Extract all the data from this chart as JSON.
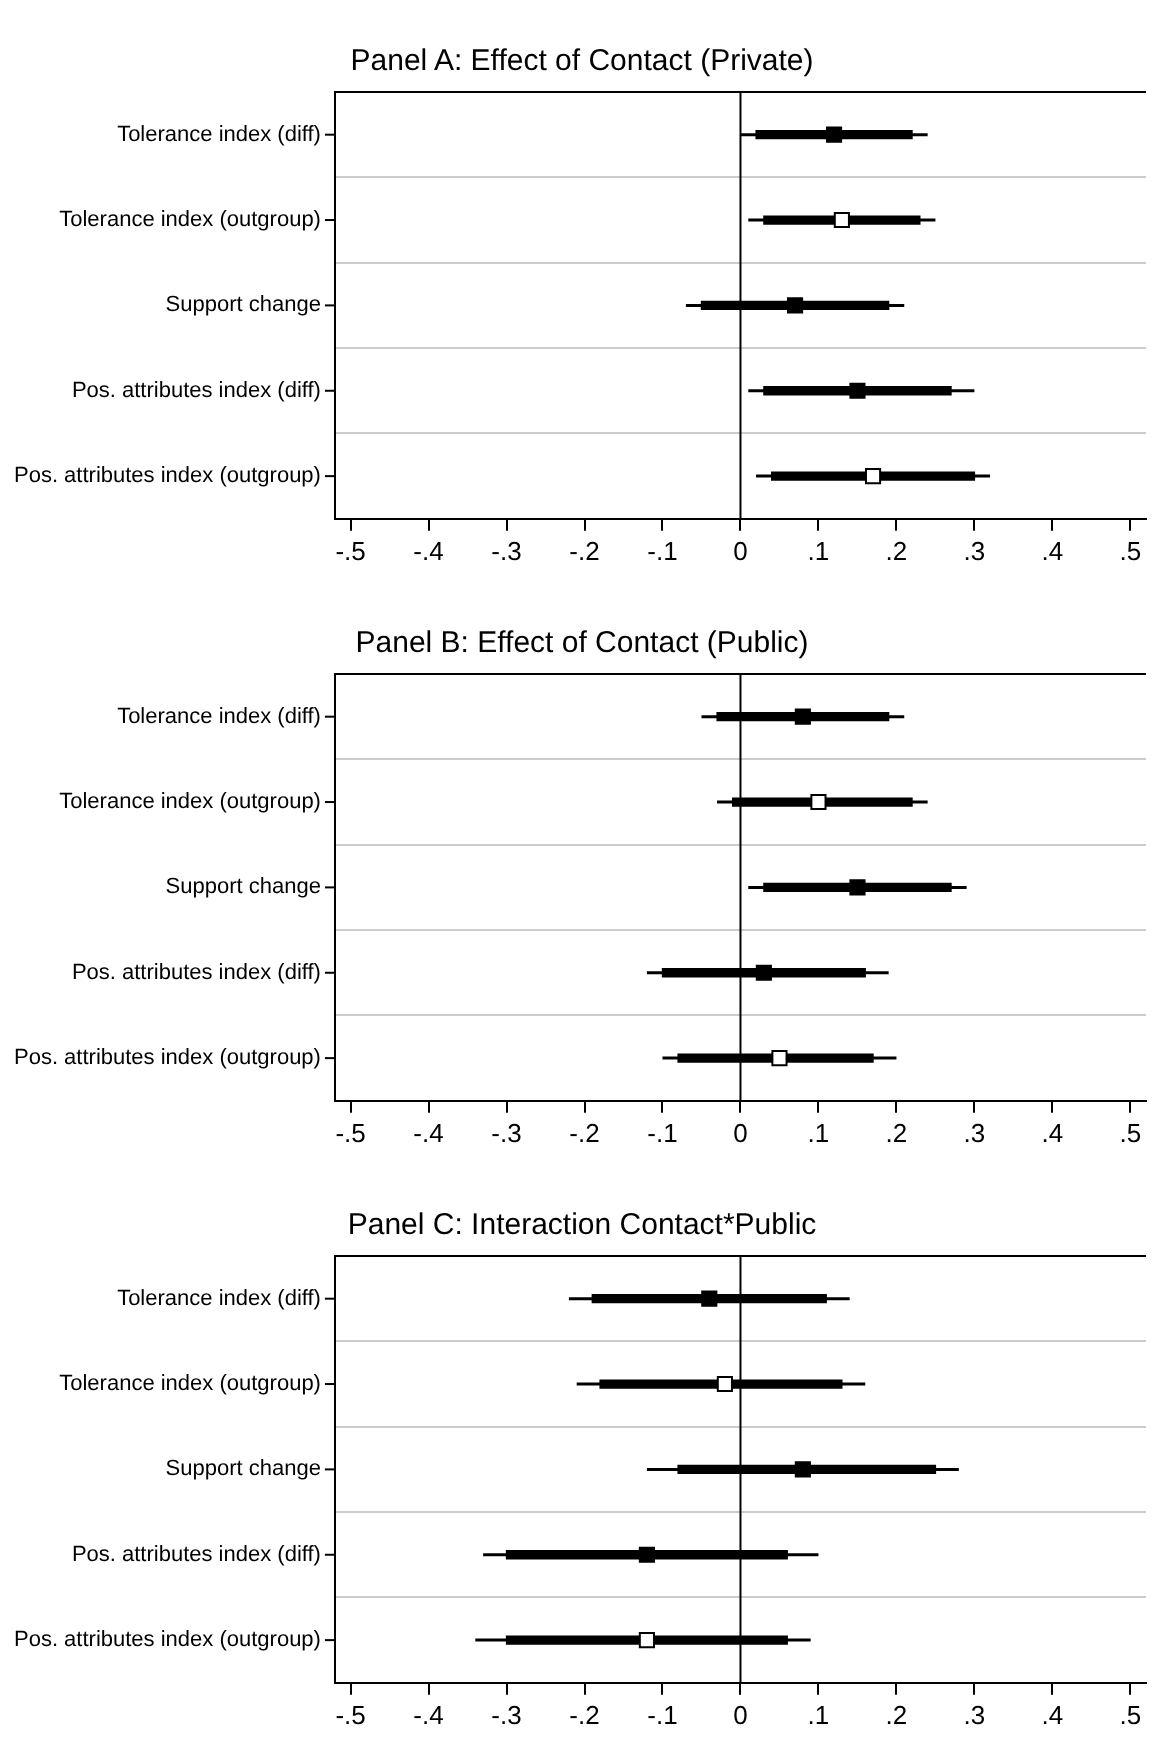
{
  "chart_data": [
    {
      "type": "scatter",
      "orientation": "horizontal",
      "title": "Panel A: Effect of Contact (Private)",
      "categories": [
        "Tolerance index (diff)",
        "Tolerance index (outgroup)",
        "Support change",
        "Pos. attributes index (diff)",
        "Pos. attributes index (outgroup)"
      ],
      "xlim": [
        -0.52,
        0.52
      ],
      "xticks": [
        {
          "value": -0.5,
          "label": "-.5"
        },
        {
          "value": -0.4,
          "label": "-.4"
        },
        {
          "value": -0.3,
          "label": "-.3"
        },
        {
          "value": -0.2,
          "label": "-.2"
        },
        {
          "value": -0.1,
          "label": "-.1"
        },
        {
          "value": 0,
          "label": "0"
        },
        {
          "value": 0.1,
          "label": ".1"
        },
        {
          "value": 0.2,
          "label": ".2"
        },
        {
          "value": 0.3,
          "label": ".3"
        },
        {
          "value": 0.4,
          "label": ".4"
        },
        {
          "value": 0.5,
          "label": ".5"
        }
      ],
      "grid": "y",
      "ref_lines": [
        {
          "axis": "x",
          "value": 0,
          "color": "#000000"
        }
      ],
      "series": [
        {
          "type": "bar",
          "color": "#000000",
          "base": [
            0.02,
            0.03,
            -0.05,
            0.03,
            0.04
          ],
          "values": [
            0.2,
            0.2,
            0.24,
            0.24,
            0.26
          ]
        },
        {
          "marker": "square",
          "color": "#000000",
          "values": [
            0.12,
            null,
            0.07,
            0.15,
            null
          ],
          "errors": [
            [
              0,
              0.24
            ],
            null,
            [
              -0.07,
              0.21
            ],
            [
              0.01,
              0.3
            ],
            null
          ]
        },
        {
          "marker": "square",
          "color": "#ffffff",
          "values": [
            null,
            0.13,
            null,
            null,
            0.17
          ],
          "errors": [
            null,
            [
              0.01,
              0.25
            ],
            null,
            null,
            [
              0.02,
              0.32
            ]
          ]
        }
      ]
    },
    {
      "type": "scatter",
      "orientation": "horizontal",
      "title": "Panel B: Effect of Contact (Public)",
      "categories": [
        "Tolerance index (diff)",
        "Tolerance index (outgroup)",
        "Support change",
        "Pos. attributes index (diff)",
        "Pos. attributes index (outgroup)"
      ],
      "xlim": [
        -0.52,
        0.52
      ],
      "xticks": [
        {
          "value": -0.5,
          "label": "-.5"
        },
        {
          "value": -0.4,
          "label": "-.4"
        },
        {
          "value": -0.3,
          "label": "-.3"
        },
        {
          "value": -0.2,
          "label": "-.2"
        },
        {
          "value": -0.1,
          "label": "-.1"
        },
        {
          "value": 0,
          "label": "0"
        },
        {
          "value": 0.1,
          "label": ".1"
        },
        {
          "value": 0.2,
          "label": ".2"
        },
        {
          "value": 0.3,
          "label": ".3"
        },
        {
          "value": 0.4,
          "label": ".4"
        },
        {
          "value": 0.5,
          "label": ".5"
        }
      ],
      "grid": "y",
      "ref_lines": [
        {
          "axis": "x",
          "value": 0,
          "color": "#000000"
        }
      ],
      "series": [
        {
          "type": "bar",
          "color": "#000000",
          "base": [
            -0.03,
            -0.01,
            0.03,
            -0.1,
            -0.08
          ],
          "values": [
            0.22,
            0.23,
            0.24,
            0.26,
            0.25
          ]
        },
        {
          "marker": "square",
          "color": "#000000",
          "values": [
            0.08,
            null,
            0.15,
            0.03,
            null
          ],
          "errors": [
            [
              -0.05,
              0.21
            ],
            null,
            [
              0.01,
              0.29
            ],
            [
              -0.12,
              0.19
            ],
            null
          ]
        },
        {
          "marker": "square",
          "color": "#ffffff",
          "values": [
            null,
            0.1,
            null,
            null,
            0.05
          ],
          "errors": [
            null,
            [
              -0.03,
              0.24
            ],
            null,
            null,
            [
              -0.1,
              0.2
            ]
          ]
        }
      ]
    },
    {
      "type": "scatter",
      "orientation": "horizontal",
      "title": "Panel C: Interaction Contact*Public",
      "categories": [
        "Tolerance index (diff)",
        "Tolerance index (outgroup)",
        "Support change",
        "Pos. attributes index (diff)",
        "Pos. attributes index (outgroup)"
      ],
      "xlim": [
        -0.52,
        0.52
      ],
      "xticks": [
        {
          "value": -0.5,
          "label": "-.5"
        },
        {
          "value": -0.4,
          "label": "-.4"
        },
        {
          "value": -0.3,
          "label": "-.3"
        },
        {
          "value": -0.2,
          "label": "-.2"
        },
        {
          "value": -0.1,
          "label": "-.1"
        },
        {
          "value": 0,
          "label": "0"
        },
        {
          "value": 0.1,
          "label": ".1"
        },
        {
          "value": 0.2,
          "label": ".2"
        },
        {
          "value": 0.3,
          "label": ".3"
        },
        {
          "value": 0.4,
          "label": ".4"
        },
        {
          "value": 0.5,
          "label": ".5"
        }
      ],
      "grid": "y",
      "ref_lines": [
        {
          "axis": "x",
          "value": 0,
          "color": "#000000"
        }
      ],
      "series": [
        {
          "type": "bar",
          "color": "#000000",
          "base": [
            -0.19,
            -0.18,
            -0.08,
            -0.3,
            -0.3
          ],
          "values": [
            0.3,
            0.31,
            0.33,
            0.36,
            0.36
          ]
        },
        {
          "marker": "square",
          "color": "#000000",
          "values": [
            -0.04,
            null,
            0.08,
            -0.12,
            null
          ],
          "errors": [
            [
              -0.22,
              0.14
            ],
            null,
            [
              -0.12,
              0.28
            ],
            [
              -0.33,
              0.1
            ],
            null
          ]
        },
        {
          "marker": "square",
          "color": "#ffffff",
          "values": [
            null,
            -0.02,
            null,
            null,
            -0.12
          ],
          "errors": [
            null,
            [
              -0.21,
              0.16
            ],
            null,
            null,
            [
              -0.34,
              0.09
            ]
          ]
        }
      ]
    }
  ]
}
